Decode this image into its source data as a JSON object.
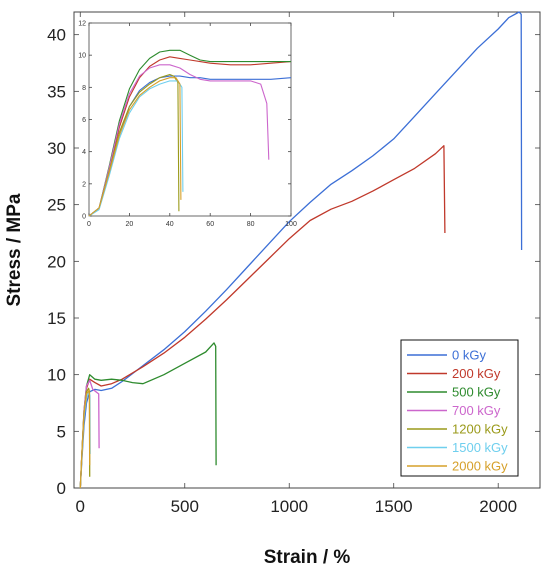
{
  "chart_data": [
    {
      "type": "line",
      "title": "",
      "xlabel": "Strain / %",
      "ylabel": "Stress / MPa",
      "xlim": [
        -30,
        2200
      ],
      "ylim": [
        0,
        42
      ],
      "xticks": [
        "0",
        "500",
        "1000",
        "1500",
        "2000"
      ],
      "yticks": [
        "0",
        "5",
        "10",
        "15",
        "20",
        "25",
        "30",
        "35",
        "40"
      ],
      "legend": "right, lower-middle",
      "series": [
        {
          "name": "0 kGy",
          "color": "#3c6fd6",
          "x": [
            0,
            8,
            18,
            30,
            45,
            70,
            100,
            150,
            200,
            300,
            400,
            500,
            600,
            700,
            800,
            900,
            1000,
            1100,
            1200,
            1300,
            1400,
            1500,
            1550,
            1600,
            1700,
            1800,
            1900,
            2000,
            2050,
            2100,
            2110,
            2112
          ],
          "y": [
            0,
            2.5,
            5.5,
            7.5,
            8.5,
            8.7,
            8.6,
            8.8,
            9.4,
            10.8,
            12.2,
            13.8,
            15.6,
            17.5,
            19.5,
            21.5,
            23.5,
            25.2,
            26.8,
            28.0,
            29.3,
            30.8,
            31.8,
            32.8,
            34.8,
            36.8,
            38.8,
            40.5,
            41.5,
            42.0,
            41.8,
            21.0
          ]
        },
        {
          "name": "200 kGy",
          "color": "#c0392b",
          "x": [
            0,
            8,
            18,
            30,
            45,
            70,
            100,
            150,
            200,
            300,
            400,
            500,
            600,
            700,
            800,
            900,
            1000,
            1100,
            1200,
            1300,
            1400,
            1500,
            1600,
            1700,
            1740,
            1745
          ],
          "y": [
            0,
            3,
            6.5,
            8.8,
            9.6,
            9.3,
            9.0,
            9.2,
            9.6,
            10.7,
            11.9,
            13.3,
            14.9,
            16.6,
            18.4,
            20.2,
            22.0,
            23.6,
            24.6,
            25.3,
            26.2,
            27.2,
            28.2,
            29.5,
            30.2,
            22.5
          ]
        },
        {
          "name": "500 kGy",
          "color": "#2e8b2e",
          "x": [
            0,
            8,
            18,
            30,
            45,
            70,
            100,
            150,
            200,
            250,
            300,
            400,
            500,
            600,
            640,
            648,
            650
          ],
          "y": [
            0,
            3,
            6.8,
            9.0,
            10.0,
            9.6,
            9.5,
            9.6,
            9.5,
            9.3,
            9.2,
            10.0,
            11.0,
            12.0,
            12.8,
            12.5,
            2.0
          ]
        },
        {
          "name": "700 kGy",
          "color": "#cc66cc",
          "x": [
            0,
            8,
            18,
            30,
            45,
            60,
            75,
            88,
            90
          ],
          "y": [
            0,
            3,
            6.8,
            9.0,
            9.5,
            8.7,
            8.5,
            8.3,
            3.5
          ]
        },
        {
          "name": "1200 kGy",
          "color": "#9a9a1a",
          "x": [
            0,
            8,
            18,
            30,
            40,
            44,
            45
          ],
          "y": [
            0,
            3,
            6.5,
            8.5,
            8.8,
            8.5,
            1.0
          ]
        },
        {
          "name": "1500 kGy",
          "color": "#6fcfee",
          "x": [
            0,
            8,
            18,
            30,
            40,
            46,
            47
          ],
          "y": [
            0,
            2.8,
            6.2,
            8.0,
            8.4,
            8.2,
            3.0
          ]
        },
        {
          "name": "2000 kGy",
          "color": "#d6a02a",
          "x": [
            0,
            8,
            18,
            30,
            42,
            44,
            45
          ],
          "y": [
            0,
            3,
            6.5,
            8.3,
            8.6,
            8.0,
            2.0
          ]
        }
      ]
    },
    {
      "type": "line",
      "title": "",
      "xlabel": "",
      "ylabel": "",
      "xlim": [
        0,
        100
      ],
      "ylim": [
        0,
        12
      ],
      "xticks": [
        "0",
        "20",
        "40",
        "60",
        "80",
        "100"
      ],
      "yticks": [
        "0",
        "2",
        "4",
        "6",
        "8",
        "10",
        "12"
      ],
      "series": [
        {
          "color": "#3c6fd6",
          "x": [
            0,
            5,
            10,
            15,
            20,
            25,
            30,
            35,
            40,
            45,
            50,
            55,
            60,
            70,
            80,
            90,
            100
          ],
          "y": [
            0,
            0.5,
            2.6,
            5.0,
            6.8,
            7.8,
            8.3,
            8.6,
            8.7,
            8.7,
            8.6,
            8.6,
            8.5,
            8.5,
            8.5,
            8.5,
            8.6
          ]
        },
        {
          "name": "200 kGy",
          "color": "#c0392b",
          "x": [
            0,
            5,
            10,
            15,
            20,
            25,
            30,
            35,
            40,
            45,
            50,
            55,
            60,
            70,
            80,
            90,
            100
          ],
          "y": [
            0,
            0.5,
            2.9,
            5.5,
            7.4,
            8.6,
            9.3,
            9.7,
            9.9,
            9.8,
            9.7,
            9.6,
            9.5,
            9.4,
            9.4,
            9.5,
            9.6
          ]
        },
        {
          "color": "#2e8b2e",
          "x": [
            0,
            5,
            10,
            15,
            20,
            25,
            30,
            35,
            40,
            45,
            50,
            55,
            60,
            70,
            80,
            90,
            100
          ],
          "y": [
            0,
            0.5,
            3.1,
            5.9,
            7.9,
            9.1,
            9.8,
            10.2,
            10.3,
            10.3,
            10.0,
            9.7,
            9.6,
            9.6,
            9.6,
            9.6,
            9.6
          ]
        },
        {
          "color": "#cc66cc",
          "x": [
            0,
            5,
            10,
            15,
            20,
            25,
            30,
            35,
            40,
            45,
            50,
            55,
            60,
            70,
            80,
            85,
            88,
            89
          ],
          "y": [
            0,
            0.5,
            3.0,
            5.7,
            7.6,
            8.7,
            9.2,
            9.4,
            9.4,
            9.2,
            8.8,
            8.5,
            8.4,
            8.4,
            8.4,
            8.2,
            7.0,
            3.5
          ]
        },
        {
          "color": "#9a9a1a",
          "x": [
            0,
            5,
            10,
            15,
            20,
            25,
            30,
            35,
            40,
            42,
            44,
            44.5
          ],
          "y": [
            0,
            0.5,
            2.8,
            5.2,
            6.8,
            7.7,
            8.2,
            8.6,
            8.8,
            8.7,
            8.3,
            0.3
          ]
        },
        {
          "color": "#6fcfee",
          "x": [
            0,
            5,
            10,
            15,
            20,
            25,
            30,
            35,
            40,
            44,
            46,
            46.5
          ],
          "y": [
            0,
            0.4,
            2.5,
            4.8,
            6.4,
            7.4,
            7.9,
            8.2,
            8.4,
            8.4,
            8.0,
            1.5
          ]
        },
        {
          "color": "#d6a02a",
          "x": [
            0,
            5,
            10,
            15,
            20,
            25,
            30,
            35,
            40,
            43,
            45,
            45.5
          ],
          "y": [
            0,
            0.5,
            2.7,
            5.0,
            6.6,
            7.5,
            8.0,
            8.4,
            8.6,
            8.6,
            8.2,
            1.0
          ]
        }
      ]
    }
  ]
}
